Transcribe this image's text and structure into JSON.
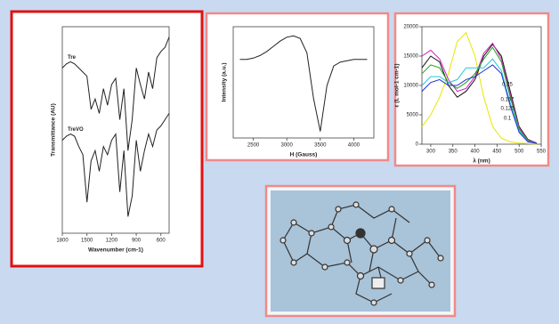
{
  "chart_data": [
    {
      "type": "line",
      "xlabel": "Wavenumber (cm-1)",
      "ylabel": "Transmittance (AU)",
      "x": [
        1800,
        1750,
        1700,
        1650,
        1600,
        1550,
        1500,
        1450,
        1400,
        1350,
        1300,
        1250,
        1200,
        1150,
        1100,
        1050,
        1000,
        950,
        900,
        850,
        800,
        750,
        700,
        650,
        600,
        550,
        500
      ],
      "xlim": [
        1800,
        500
      ],
      "xticks": [
        1800,
        1500,
        1200,
        900,
        600
      ],
      "ylim": [
        0,
        100
      ],
      "series": [
        {
          "name": "Tre",
          "color": "#222222",
          "values": [
            80,
            82,
            83,
            82,
            80,
            78,
            76,
            60,
            65,
            58,
            70,
            62,
            72,
            75,
            55,
            70,
            40,
            55,
            80,
            72,
            65,
            78,
            70,
            85,
            88,
            90,
            95
          ]
        },
        {
          "name": "TreVO",
          "color": "#222222",
          "values": [
            45,
            47,
            48,
            47,
            42,
            38,
            15,
            35,
            40,
            30,
            42,
            38,
            45,
            48,
            20,
            40,
            8,
            18,
            45,
            30,
            40,
            48,
            42,
            50,
            52,
            55,
            58
          ]
        }
      ]
    },
    {
      "type": "line",
      "xlabel": "H (Gauss)",
      "ylabel": "Intensity (a.u.)",
      "x": [
        2300,
        2400,
        2500,
        2600,
        2700,
        2800,
        2900,
        3000,
        3100,
        3200,
        3300,
        3400,
        3500,
        3600,
        3700,
        3800,
        3900,
        4000,
        4100,
        4200
      ],
      "xlim": [
        2200,
        4300
      ],
      "xticks": [
        2500,
        3000,
        3500,
        4000
      ],
      "ylim": [
        -60,
        25
      ],
      "series": [
        {
          "color": "#222222",
          "values": [
            0,
            0,
            1,
            3,
            6,
            10,
            14,
            17,
            18,
            16,
            5,
            -30,
            -55,
            -20,
            -5,
            -2,
            -1,
            0,
            0,
            0
          ]
        }
      ]
    },
    {
      "type": "line",
      "xlabel": "λ (nm)",
      "ylabel": "ε (L mol-1 cm-1)",
      "x": [
        280,
        300,
        320,
        340,
        360,
        380,
        400,
        420,
        440,
        460,
        480,
        500,
        520,
        540
      ],
      "xlim": [
        280,
        550
      ],
      "xticks": [
        300,
        350,
        400,
        450,
        500,
        550
      ],
      "ylim": [
        0,
        20000
      ],
      "yticks": [
        0,
        5000,
        10000,
        15000,
        20000
      ],
      "annotations": [
        "0.25",
        "0.167",
        "0.125",
        "0.1"
      ],
      "series": [
        {
          "color": "#e6e600",
          "values": [
            3000,
            5000,
            8000,
            12000,
            17500,
            19000,
            15000,
            8000,
            3000,
            1000,
            400,
            200,
            100,
            0
          ]
        },
        {
          "color": "#111111",
          "values": [
            13000,
            15000,
            14000,
            10000,
            8000,
            9000,
            11000,
            15000,
            17000,
            15000,
            9000,
            3000,
            800,
            200
          ]
        },
        {
          "color": "#d020c0",
          "values": [
            15000,
            16000,
            14500,
            11000,
            9000,
            9500,
            11500,
            15500,
            17200,
            14500,
            8500,
            2800,
            700,
            200
          ]
        },
        {
          "color": "#20a020",
          "values": [
            12000,
            13500,
            13000,
            10500,
            9500,
            10500,
            12000,
            14500,
            16500,
            14000,
            8000,
            2500,
            600,
            100
          ]
        },
        {
          "color": "#20c8d8",
          "values": [
            10000,
            11500,
            11500,
            10500,
            11000,
            13000,
            13000,
            13000,
            14500,
            12500,
            7000,
            2200,
            500,
            100
          ]
        },
        {
          "color": "#2030d0",
          "values": [
            9000,
            10500,
            11000,
            10000,
            10000,
            11000,
            11500,
            12500,
            13500,
            12000,
            6500,
            2000,
            400,
            100
          ]
        }
      ]
    }
  ]
}
